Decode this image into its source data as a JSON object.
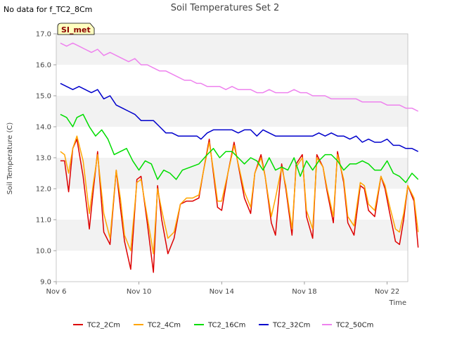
{
  "no_data_note": "No data for f_TC2_8Cm",
  "badge": "SI_met",
  "chart_data": {
    "type": "line",
    "title": "Soil Temperatures Set 2",
    "xlabel": "Time",
    "ylabel": "Soil Temperature (C)",
    "xlim": [
      0,
      17
    ],
    "ylim": [
      9.0,
      17.0
    ],
    "xticks": [
      {
        "x": 0,
        "label": "Nov 6"
      },
      {
        "x": 4,
        "label": "Nov 10"
      },
      {
        "x": 8,
        "label": "Nov 14"
      },
      {
        "x": 12,
        "label": "Nov 18"
      },
      {
        "x": 16,
        "label": "Nov 22"
      }
    ],
    "yticks": [
      "9.0",
      "10.0",
      "11.0",
      "12.0",
      "13.0",
      "14.0",
      "15.0",
      "16.0",
      "17.0"
    ],
    "grid": "horizontal bands",
    "legend_position": "bottom",
    "series": [
      {
        "name": "TC2_2Cm",
        "color": "#dd0000",
        "x": [
          0.2,
          0.4,
          0.6,
          0.8,
          1.0,
          1.3,
          1.6,
          1.8,
          2.0,
          2.3,
          2.6,
          2.9,
          3.1,
          3.3,
          3.6,
          3.9,
          4.1,
          4.4,
          4.7,
          4.9,
          5.1,
          5.4,
          5.7,
          6.0,
          6.3,
          6.6,
          6.9,
          7.1,
          7.4,
          7.6,
          7.8,
          8.0,
          8.3,
          8.6,
          8.9,
          9.1,
          9.4,
          9.6,
          9.9,
          10.1,
          10.4,
          10.6,
          10.9,
          11.1,
          11.4,
          11.6,
          11.9,
          12.1,
          12.4,
          12.6,
          12.9,
          13.1,
          13.4,
          13.6,
          13.9,
          14.1,
          14.4,
          14.7,
          14.9,
          15.1,
          15.4,
          15.7,
          15.9,
          16.1,
          16.4,
          16.6,
          16.8,
          17.0,
          17.3,
          17.5
        ],
        "y": [
          12.9,
          12.9,
          11.9,
          13.3,
          13.6,
          12.4,
          10.7,
          12.0,
          13.2,
          10.6,
          10.2,
          12.6,
          11.4,
          10.3,
          9.4,
          12.3,
          12.4,
          10.9,
          9.3,
          12.1,
          11.0,
          9.9,
          10.4,
          11.5,
          11.6,
          11.6,
          11.7,
          12.5,
          13.6,
          12.5,
          11.4,
          11.3,
          12.5,
          13.5,
          12.4,
          11.7,
          11.2,
          12.5,
          13.1,
          12.4,
          10.9,
          10.5,
          12.8,
          12.0,
          10.5,
          12.8,
          13.1,
          11.1,
          10.4,
          13.1,
          12.7,
          11.9,
          10.9,
          13.2,
          12.2,
          10.9,
          10.5,
          12.1,
          12.0,
          11.3,
          11.1,
          12.4,
          12.0,
          11.3,
          10.3,
          10.2,
          11.0,
          12.1,
          11.6,
          10.1
        ]
      },
      {
        "name": "TC2_4Cm",
        "color": "#ffa500",
        "x": [
          0.2,
          0.4,
          0.6,
          0.8,
          1.0,
          1.3,
          1.6,
          1.8,
          2.0,
          2.3,
          2.6,
          2.9,
          3.1,
          3.3,
          3.6,
          3.9,
          4.1,
          4.4,
          4.7,
          4.9,
          5.1,
          5.4,
          5.7,
          6.0,
          6.3,
          6.6,
          6.9,
          7.1,
          7.4,
          7.6,
          7.8,
          8.0,
          8.3,
          8.6,
          8.9,
          9.1,
          9.4,
          9.6,
          9.9,
          10.1,
          10.4,
          10.6,
          10.9,
          11.1,
          11.4,
          11.6,
          11.9,
          12.1,
          12.4,
          12.6,
          12.9,
          13.1,
          13.4,
          13.6,
          13.9,
          14.1,
          14.4,
          14.7,
          14.9,
          15.1,
          15.4,
          15.7,
          15.9,
          16.1,
          16.4,
          16.6,
          16.8,
          17.0,
          17.3,
          17.5
        ],
        "y": [
          13.2,
          13.1,
          12.5,
          13.3,
          13.7,
          12.9,
          11.2,
          12.2,
          13.1,
          11.2,
          10.4,
          12.6,
          11.7,
          10.5,
          10.0,
          12.2,
          12.3,
          11.1,
          9.9,
          12.0,
          11.3,
          10.4,
          10.6,
          11.5,
          11.7,
          11.7,
          11.8,
          12.5,
          13.5,
          12.6,
          11.6,
          11.6,
          12.5,
          13.4,
          12.5,
          11.9,
          11.4,
          12.5,
          13.0,
          12.4,
          11.1,
          11.7,
          12.7,
          12.1,
          10.7,
          12.7,
          13.0,
          11.3,
          10.7,
          13.0,
          12.7,
          12.0,
          11.1,
          13.1,
          12.3,
          11.1,
          10.8,
          12.2,
          12.1,
          11.5,
          11.3,
          12.4,
          12.1,
          11.5,
          10.7,
          10.6,
          11.2,
          12.1,
          11.7,
          10.6
        ]
      },
      {
        "name": "TC2_16Cm",
        "color": "#00dd00",
        "x": [
          0.2,
          0.5,
          0.8,
          1.0,
          1.3,
          1.6,
          1.9,
          2.2,
          2.5,
          2.8,
          3.1,
          3.4,
          3.7,
          4.0,
          4.3,
          4.6,
          4.9,
          5.2,
          5.5,
          5.8,
          6.1,
          6.5,
          6.9,
          7.3,
          7.6,
          7.9,
          8.2,
          8.5,
          8.8,
          9.1,
          9.4,
          9.7,
          10.0,
          10.3,
          10.6,
          10.9,
          11.2,
          11.5,
          11.8,
          12.1,
          12.4,
          12.7,
          13.0,
          13.3,
          13.6,
          13.9,
          14.2,
          14.5,
          14.8,
          15.1,
          15.4,
          15.7,
          16.0,
          16.3,
          16.6,
          16.9,
          17.2,
          17.5
        ],
        "y": [
          14.4,
          14.3,
          14.0,
          14.3,
          14.4,
          14.0,
          13.7,
          13.9,
          13.6,
          13.1,
          13.2,
          13.3,
          12.9,
          12.6,
          12.9,
          12.8,
          12.3,
          12.6,
          12.5,
          12.3,
          12.6,
          12.7,
          12.8,
          13.1,
          13.3,
          13.0,
          13.2,
          13.2,
          13.0,
          12.8,
          13.0,
          12.9,
          12.6,
          13.0,
          12.6,
          12.7,
          12.6,
          13.0,
          12.4,
          12.9,
          12.6,
          12.9,
          13.1,
          13.1,
          12.9,
          12.6,
          12.8,
          12.8,
          12.9,
          12.8,
          12.6,
          12.6,
          12.9,
          12.5,
          12.4,
          12.2,
          12.5,
          12.3
        ]
      },
      {
        "name": "TC2_32Cm",
        "color": "#0000cc",
        "x": [
          0.2,
          0.5,
          0.8,
          1.1,
          1.4,
          1.7,
          2.0,
          2.3,
          2.6,
          2.9,
          3.2,
          3.5,
          3.8,
          4.1,
          4.4,
          4.7,
          5.0,
          5.3,
          5.6,
          5.9,
          6.2,
          6.5,
          6.8,
          7.0,
          7.3,
          7.6,
          7.9,
          8.2,
          8.5,
          8.8,
          9.1,
          9.4,
          9.7,
          10.0,
          10.3,
          10.6,
          10.9,
          11.2,
          11.5,
          11.8,
          12.1,
          12.4,
          12.7,
          13.0,
          13.3,
          13.6,
          13.9,
          14.2,
          14.5,
          14.8,
          15.1,
          15.4,
          15.7,
          16.0,
          16.3,
          16.6,
          16.9,
          17.2,
          17.5
        ],
        "y": [
          15.4,
          15.3,
          15.2,
          15.3,
          15.2,
          15.1,
          15.2,
          14.9,
          15.0,
          14.7,
          14.6,
          14.5,
          14.4,
          14.2,
          14.2,
          14.2,
          14.0,
          13.8,
          13.8,
          13.7,
          13.7,
          13.7,
          13.7,
          13.6,
          13.8,
          13.9,
          13.9,
          13.9,
          13.9,
          13.8,
          13.9,
          13.9,
          13.7,
          13.9,
          13.8,
          13.7,
          13.7,
          13.7,
          13.7,
          13.7,
          13.7,
          13.7,
          13.8,
          13.7,
          13.8,
          13.7,
          13.7,
          13.6,
          13.7,
          13.5,
          13.6,
          13.5,
          13.5,
          13.6,
          13.4,
          13.4,
          13.3,
          13.3,
          13.2
        ]
      },
      {
        "name": "TC2_50Cm",
        "color": "#ee82ee",
        "x": [
          0.2,
          0.5,
          0.8,
          1.1,
          1.4,
          1.7,
          2.0,
          2.3,
          2.6,
          2.9,
          3.2,
          3.5,
          3.8,
          4.1,
          4.4,
          4.7,
          5.0,
          5.3,
          5.6,
          5.9,
          6.2,
          6.5,
          6.8,
          7.0,
          7.3,
          7.6,
          7.9,
          8.2,
          8.5,
          8.8,
          9.1,
          9.4,
          9.7,
          10.0,
          10.3,
          10.6,
          10.9,
          11.2,
          11.5,
          11.8,
          12.1,
          12.4,
          12.7,
          13.0,
          13.3,
          13.6,
          13.9,
          14.2,
          14.5,
          14.8,
          15.1,
          15.4,
          15.7,
          16.0,
          16.3,
          16.6,
          16.9,
          17.2,
          17.5
        ],
        "y": [
          16.7,
          16.6,
          16.7,
          16.6,
          16.5,
          16.4,
          16.5,
          16.3,
          16.4,
          16.3,
          16.2,
          16.1,
          16.2,
          16.0,
          16.0,
          15.9,
          15.8,
          15.8,
          15.7,
          15.6,
          15.5,
          15.5,
          15.4,
          15.4,
          15.3,
          15.3,
          15.3,
          15.2,
          15.3,
          15.2,
          15.2,
          15.2,
          15.1,
          15.1,
          15.2,
          15.1,
          15.1,
          15.1,
          15.2,
          15.1,
          15.1,
          15.0,
          15.0,
          15.0,
          14.9,
          14.9,
          14.9,
          14.9,
          14.9,
          14.8,
          14.8,
          14.8,
          14.8,
          14.7,
          14.7,
          14.7,
          14.6,
          14.6,
          14.5
        ]
      }
    ]
  }
}
